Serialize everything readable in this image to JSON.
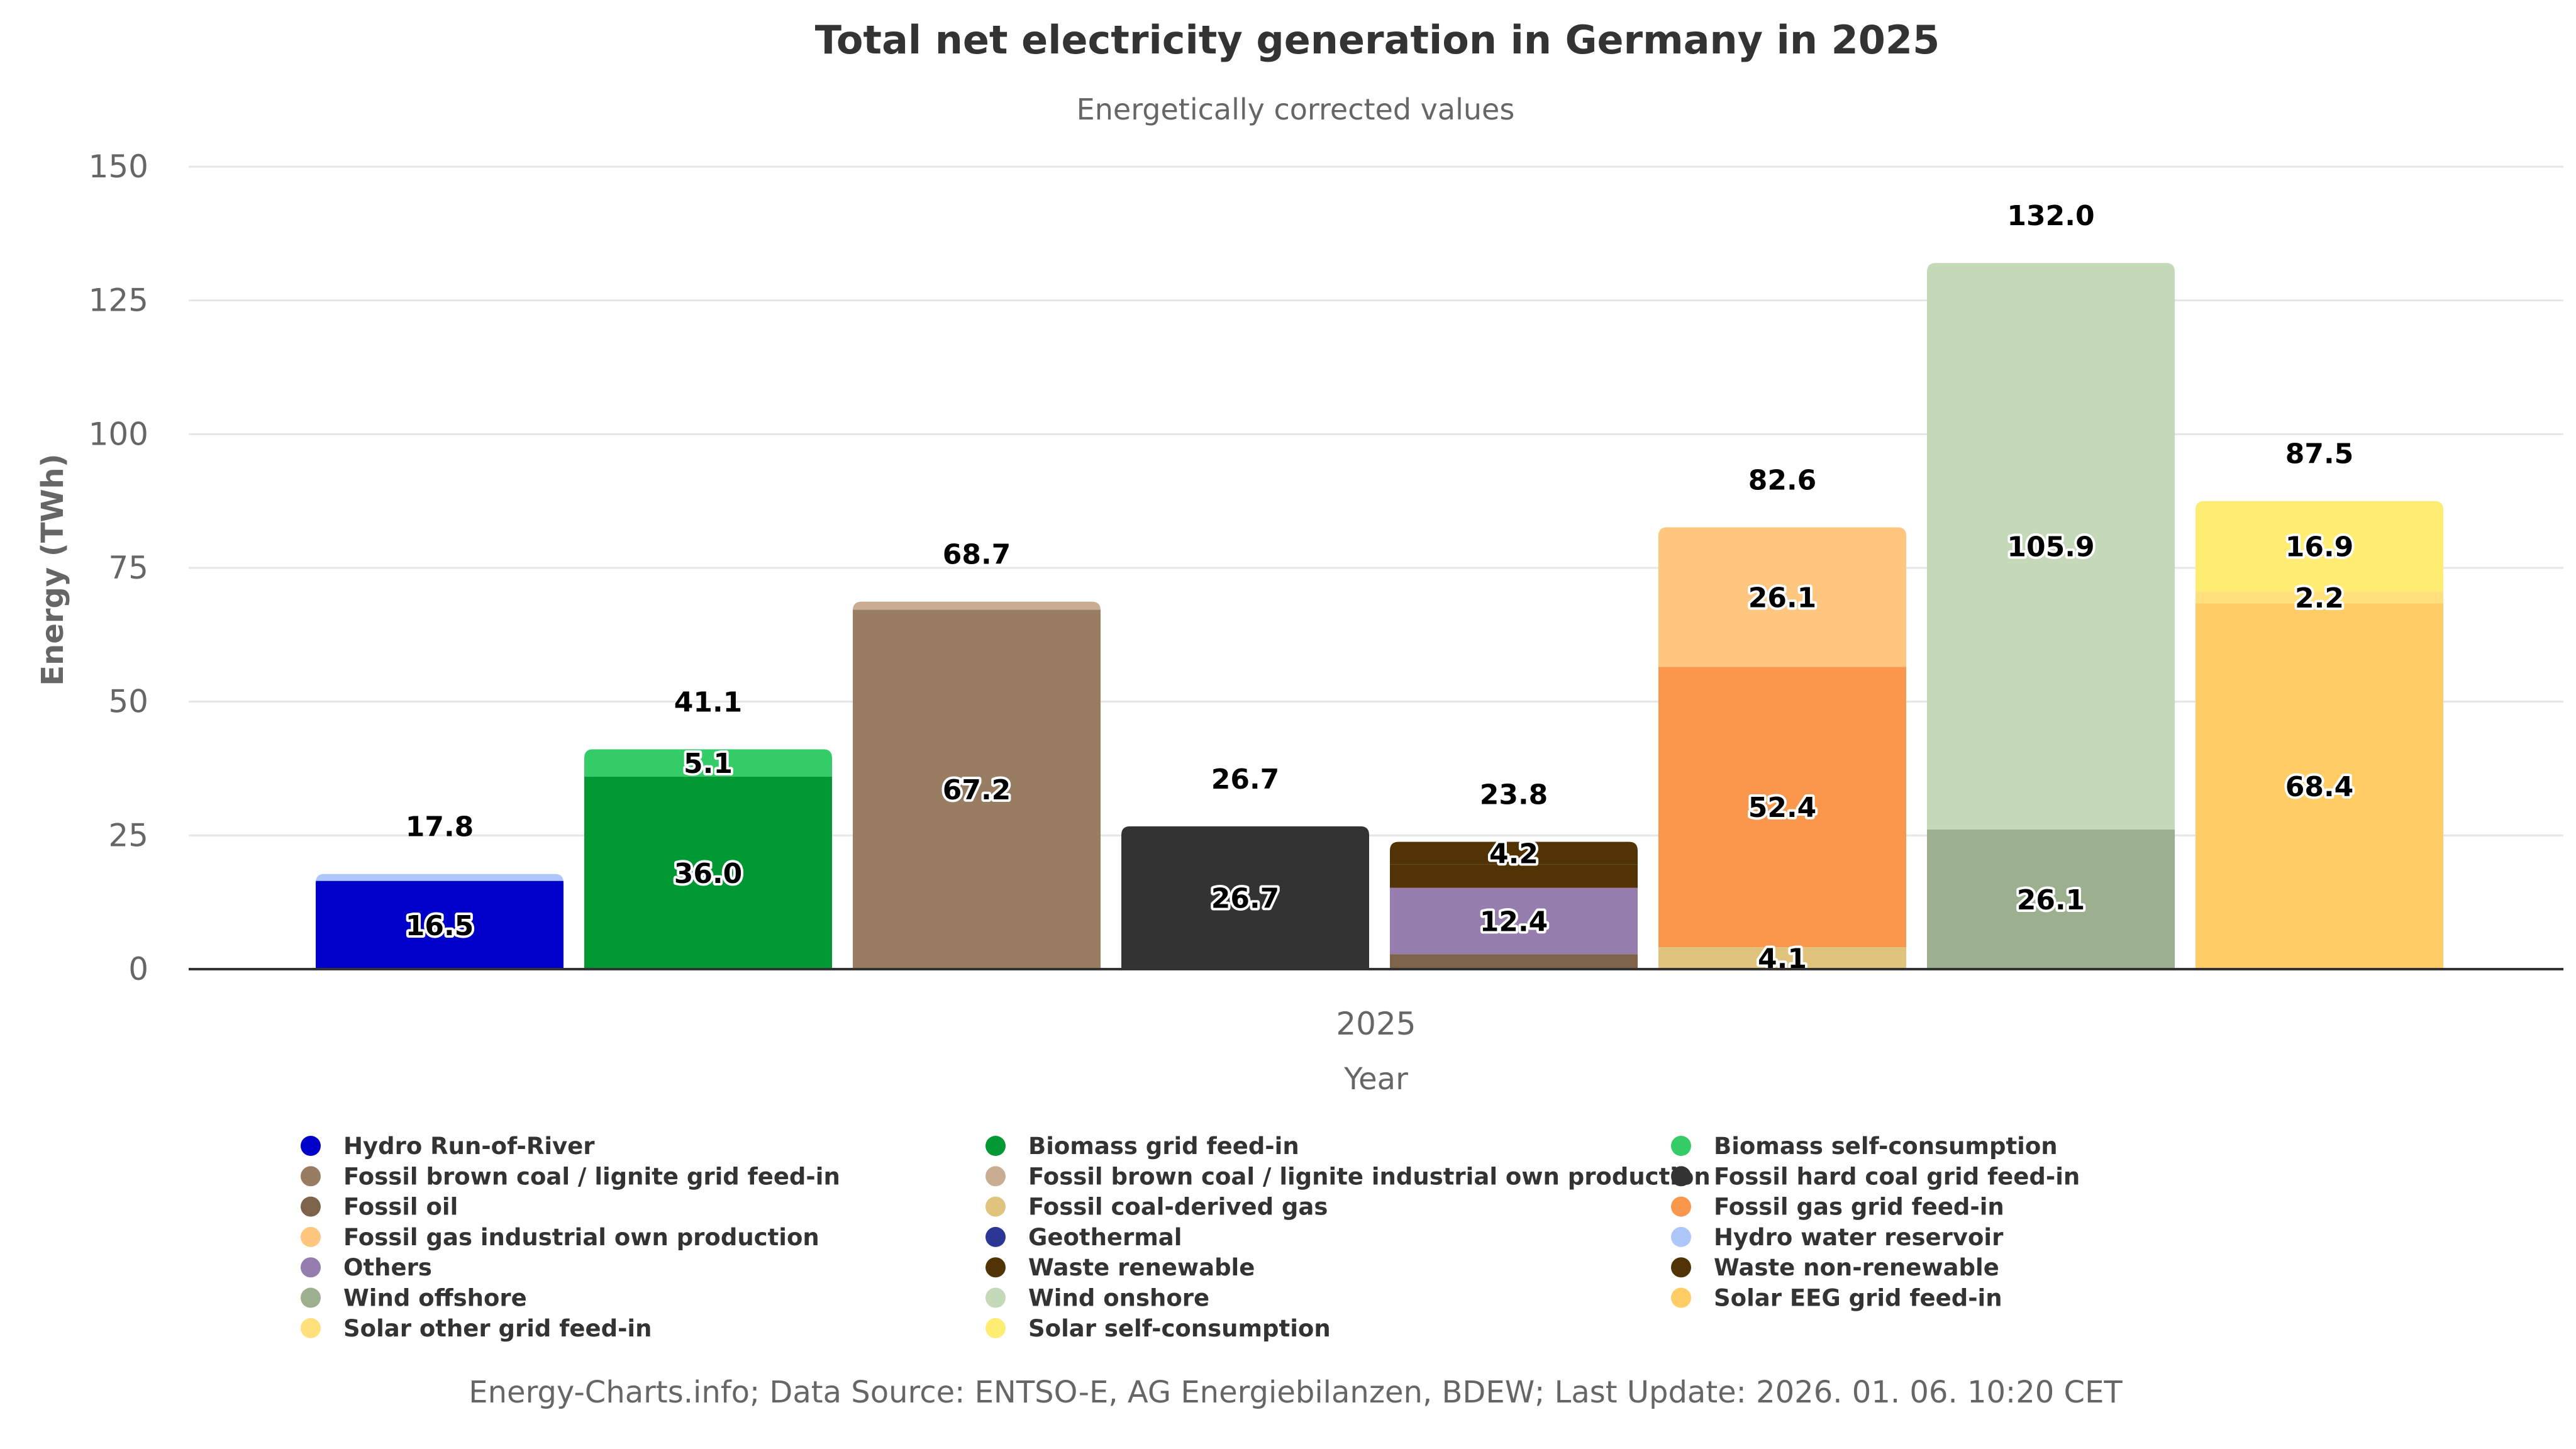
{
  "chart_data": {
    "type": "bar",
    "stacked": true,
    "title": "Total net electricity generation in Germany in 2025",
    "subtitle": "Energetically corrected values",
    "xlabel": "Year",
    "ylabel": "Energy (TWh)",
    "categories": [
      "2025"
    ],
    "ylim": [
      0,
      150
    ],
    "yticks": [
      0,
      25,
      50,
      75,
      100,
      125,
      150
    ],
    "grid": true,
    "legend_position": "bottom",
    "stacks": [
      {
        "total": 17.8,
        "segments": [
          {
            "series": "Hydro Run-of-River",
            "value": 16.5,
            "label": "16.5"
          },
          {
            "series": "Hydro water reservoir",
            "value": 1.3
          }
        ]
      },
      {
        "total": 41.1,
        "segments": [
          {
            "series": "Biomass grid feed-in",
            "value": 36.0,
            "label": "36.0"
          },
          {
            "series": "Biomass self-consumption",
            "value": 5.1,
            "label": "5.1"
          }
        ]
      },
      {
        "total": 68.7,
        "segments": [
          {
            "series": "Fossil brown coal / lignite grid feed-in",
            "value": 67.2,
            "label": "67.2"
          },
          {
            "series": "Fossil brown coal / lignite industrial own production",
            "value": 1.5
          }
        ]
      },
      {
        "total": 26.7,
        "segments": [
          {
            "series": "Fossil hard coal grid feed-in",
            "value": 26.7,
            "label": "26.7"
          }
        ]
      },
      {
        "total": 23.8,
        "segments": [
          {
            "series": "Fossil oil",
            "value": 2.8
          },
          {
            "series": "Others",
            "value": 12.4,
            "label": "12.4"
          },
          {
            "series": "Waste renewable",
            "value": 4.4
          },
          {
            "series": "Waste non-renewable",
            "value": 4.2,
            "label": "4.2"
          }
        ]
      },
      {
        "total": 82.6,
        "segments": [
          {
            "series": "Fossil coal-derived gas",
            "value": 4.1,
            "label": "4.1"
          },
          {
            "series": "Geothermal",
            "value": 0.0
          },
          {
            "series": "Fossil gas grid feed-in",
            "value": 52.4,
            "label": "52.4"
          },
          {
            "series": "Fossil gas industrial own production",
            "value": 26.1,
            "label": "26.1"
          }
        ]
      },
      {
        "total": 132.0,
        "segments": [
          {
            "series": "Wind offshore",
            "value": 26.1,
            "label": "26.1"
          },
          {
            "series": "Wind onshore",
            "value": 105.9,
            "label": "105.9"
          }
        ]
      },
      {
        "total": 87.5,
        "segments": [
          {
            "series": "Solar EEG grid feed-in",
            "value": 68.4,
            "label": "68.4"
          },
          {
            "series": "Solar other grid feed-in",
            "value": 2.2,
            "label": "2.2"
          },
          {
            "series": "Solar self-consumption",
            "value": 16.9,
            "label": "16.9"
          }
        ]
      }
    ],
    "legend": [
      {
        "name": "Hydro Run-of-River",
        "color": "#0000c8"
      },
      {
        "name": "Biomass grid feed-in",
        "color": "#009933"
      },
      {
        "name": "Biomass self-consumption",
        "color": "#33cc66"
      },
      {
        "name": "Fossil brown coal / lignite grid feed-in",
        "color": "#987d62"
      },
      {
        "name": "Fossil brown coal / lignite industrial own production",
        "color": "#c8ad92"
      },
      {
        "name": "Fossil hard coal grid feed-in",
        "color": "#333333"
      },
      {
        "name": "Fossil oil",
        "color": "#7d6349"
      },
      {
        "name": "Fossil coal-derived gas",
        "color": "#e0c47e"
      },
      {
        "name": "Fossil gas grid feed-in",
        "color": "#f9974c"
      },
      {
        "name": "Fossil gas industrial own production",
        "color": "#ffc680"
      },
      {
        "name": "Geothermal",
        "color": "#2a3795"
      },
      {
        "name": "Hydro water reservoir",
        "color": "#aec7fb"
      },
      {
        "name": "Others",
        "color": "#957dad"
      },
      {
        "name": "Waste renewable",
        "color": "#523306"
      },
      {
        "name": "Waste non-renewable",
        "color": "#523306"
      },
      {
        "name": "Wind offshore",
        "color": "#9caf8f"
      },
      {
        "name": "Wind onshore",
        "color": "#c3d9b8"
      },
      {
        "name": "Solar EEG grid feed-in",
        "color": "#ffcc66"
      },
      {
        "name": "Solar other grid feed-in",
        "color": "#ffe07a"
      },
      {
        "name": "Solar self-consumption",
        "color": "#ffec73"
      }
    ]
  },
  "footer": "Energy-Charts.info; Data Source: ENTSO-E, AG Energiebilanzen, BDEW; Last Update: 2026. 01. 06. 10:20 CET"
}
